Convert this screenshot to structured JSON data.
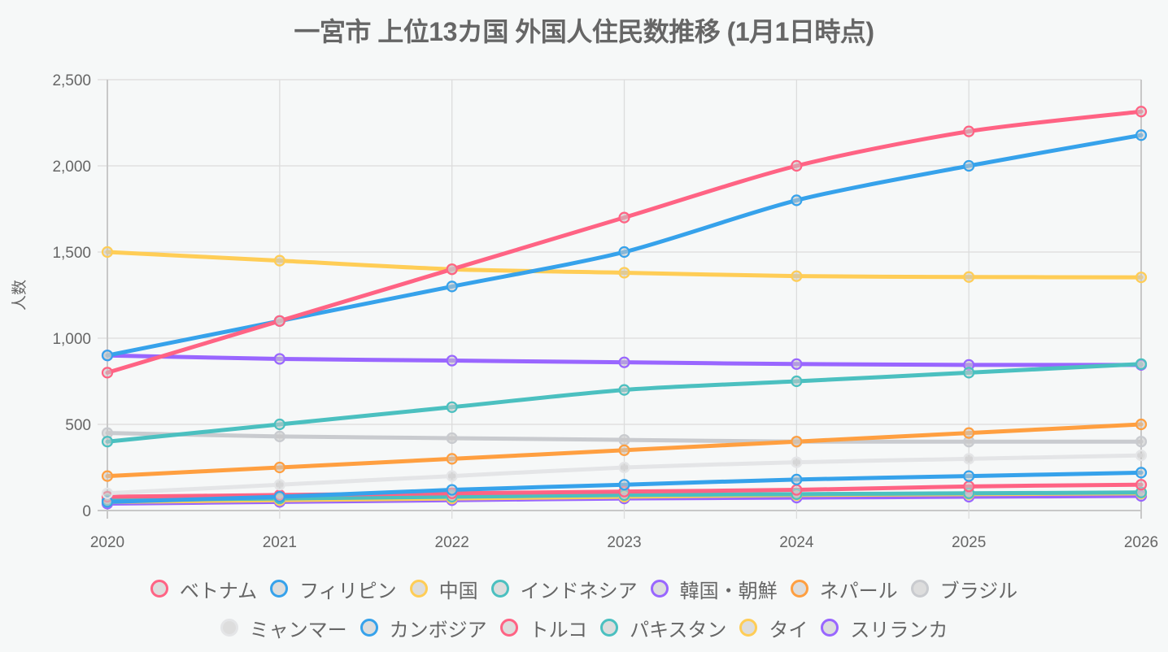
{
  "chart_data": {
    "type": "line",
    "title": "一宮市 上位13カ国 外国人住民数推移 (1月1日時点)",
    "xlabel": "",
    "ylabel": "人数",
    "x": [
      "2020",
      "2021",
      "2022",
      "2023",
      "2024",
      "2025",
      "2026"
    ],
    "ylim": [
      0,
      2500
    ],
    "yticks": [
      0,
      500,
      1000,
      1500,
      2000,
      2500
    ],
    "ytick_labels": [
      "0",
      "500",
      "1,000",
      "1,500",
      "2,000",
      "2,500"
    ],
    "grid": true,
    "legend_position": "bottom",
    "series": [
      {
        "name": "ベトナム",
        "color": "#ff6384",
        "values": [
          800,
          1100,
          1400,
          1700,
          2000,
          2200,
          2315
        ]
      },
      {
        "name": "フィリピン",
        "color": "#36a2eb",
        "values": [
          900,
          1100,
          1300,
          1500,
          1800,
          2000,
          2178
        ]
      },
      {
        "name": "中国",
        "color": "#ffcd56",
        "values": [
          1500,
          1450,
          1400,
          1380,
          1360,
          1355,
          1353
        ]
      },
      {
        "name": "インドネシア",
        "color": "#4bc0c0",
        "values": [
          400,
          500,
          600,
          700,
          750,
          800,
          850
        ]
      },
      {
        "name": "韓国・朝鮮",
        "color": "#9966ff",
        "values": [
          900,
          880,
          870,
          860,
          850,
          845,
          845
        ]
      },
      {
        "name": "ネパール",
        "color": "#ff9f40",
        "values": [
          200,
          250,
          300,
          350,
          400,
          450,
          500
        ]
      },
      {
        "name": "ブラジル",
        "color": "#c9cbcf",
        "values": [
          450,
          430,
          420,
          410,
          400,
          400,
          400
        ]
      },
      {
        "name": "ミャンマー",
        "color": "#e4e5e7",
        "values": [
          100,
          150,
          200,
          250,
          280,
          300,
          320
        ]
      },
      {
        "name": "カンボジア",
        "color": "#36a2eb",
        "values": [
          50,
          80,
          120,
          150,
          180,
          200,
          220
        ]
      },
      {
        "name": "トルコ",
        "color": "#ff6384",
        "values": [
          80,
          90,
          100,
          110,
          120,
          140,
          150
        ]
      },
      {
        "name": "パキスタン",
        "color": "#4bc0c0",
        "values": [
          60,
          70,
          80,
          90,
          95,
          100,
          105
        ]
      },
      {
        "name": "タイ",
        "color": "#ffcd56",
        "values": [
          50,
          60,
          70,
          80,
          90,
          95,
          100
        ]
      },
      {
        "name": "スリランカ",
        "color": "#9966ff",
        "values": [
          40,
          50,
          60,
          70,
          75,
          80,
          85
        ]
      }
    ]
  },
  "legend_rows": [
    [
      0,
      1,
      2,
      3,
      4,
      5,
      6
    ],
    [
      7,
      8,
      9,
      10,
      11,
      12
    ]
  ]
}
